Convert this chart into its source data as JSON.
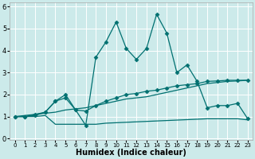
{
  "xlabel": "Humidex (Indice chaleur)",
  "bg_color": "#cceaea",
  "line_color": "#007070",
  "grid_color": "#ffffff",
  "xlim": [
    -0.5,
    23.5
  ],
  "ylim": [
    -0.05,
    6.2
  ],
  "xticks": [
    0,
    1,
    2,
    3,
    4,
    5,
    6,
    7,
    8,
    9,
    10,
    11,
    12,
    13,
    14,
    15,
    16,
    17,
    18,
    19,
    20,
    21,
    22,
    23
  ],
  "yticks": [
    0,
    1,
    2,
    3,
    4,
    5,
    6
  ],
  "line_spiky_x": [
    0,
    1,
    2,
    3,
    4,
    5,
    6,
    7,
    8,
    9,
    10,
    11,
    12,
    13,
    14,
    15,
    16,
    17,
    18,
    19,
    20,
    21,
    22,
    23
  ],
  "line_spiky_y": [
    1.0,
    1.0,
    1.1,
    1.2,
    1.7,
    1.85,
    1.3,
    0.6,
    3.7,
    4.4,
    5.3,
    4.1,
    3.6,
    4.1,
    5.65,
    4.8,
    3.0,
    3.35,
    2.6,
    1.4,
    1.5,
    1.5,
    1.6,
    0.9
  ],
  "line_diag_x": [
    0,
    1,
    2,
    3,
    4,
    5,
    6,
    7,
    8,
    9,
    10,
    11,
    12,
    13,
    14,
    15,
    16,
    17,
    18,
    19,
    20,
    21,
    22,
    23
  ],
  "line_diag_y": [
    1.0,
    1.05,
    1.1,
    1.15,
    1.2,
    1.3,
    1.35,
    1.4,
    1.5,
    1.6,
    1.7,
    1.8,
    1.85,
    1.9,
    2.0,
    2.1,
    2.2,
    2.3,
    2.4,
    2.5,
    2.55,
    2.6,
    2.62,
    2.65
  ],
  "line_mid_x": [
    0,
    1,
    2,
    3,
    4,
    5,
    6,
    7,
    8,
    9,
    10,
    11,
    12,
    13,
    14,
    15,
    16,
    17,
    18,
    19,
    20,
    21,
    22,
    23
  ],
  "line_mid_y": [
    1.0,
    1.0,
    1.05,
    1.2,
    1.7,
    2.0,
    1.3,
    1.25,
    1.5,
    1.7,
    1.85,
    2.0,
    2.05,
    2.15,
    2.2,
    2.3,
    2.4,
    2.45,
    2.5,
    2.6,
    2.62,
    2.65,
    2.65,
    2.65
  ],
  "line_low_x": [
    0,
    1,
    2,
    3,
    4,
    5,
    6,
    7,
    8,
    9,
    10,
    11,
    12,
    13,
    14,
    15,
    16,
    17,
    18,
    19,
    20,
    21,
    22,
    23
  ],
  "line_low_y": [
    1.0,
    1.0,
    1.0,
    1.05,
    0.65,
    0.65,
    0.65,
    0.65,
    0.65,
    0.7,
    0.72,
    0.74,
    0.76,
    0.78,
    0.8,
    0.82,
    0.84,
    0.86,
    0.88,
    0.9,
    0.9,
    0.9,
    0.9,
    0.85
  ],
  "marker": "D",
  "marker_size": 2.5,
  "linewidth": 0.9
}
